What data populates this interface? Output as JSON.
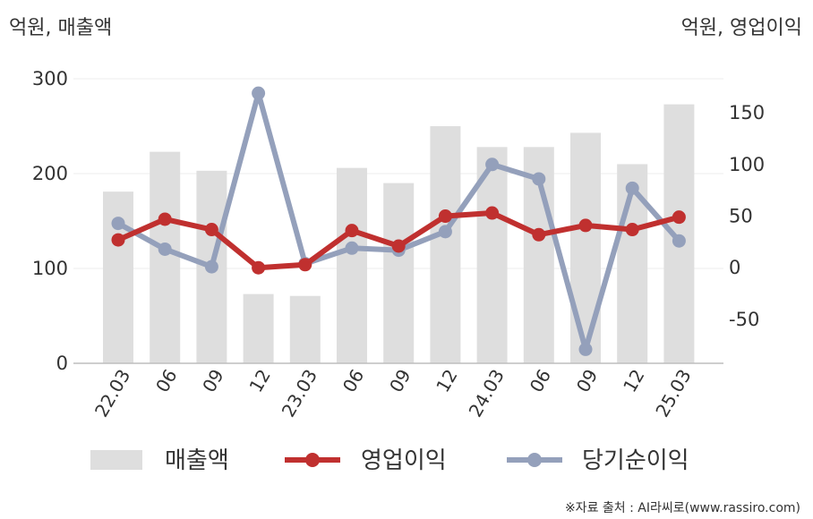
{
  "chart_data": {
    "type": "bar+line",
    "categories": [
      "22.03",
      "06",
      "09",
      "12",
      "23.03",
      "06",
      "09",
      "12",
      "24.03",
      "06",
      "09",
      "12",
      "25.03"
    ],
    "left_axis": {
      "unit_label": "억원, 매출액",
      "ticks": [
        0,
        100,
        200,
        300
      ],
      "range": [
        0,
        300
      ]
    },
    "right_axis": {
      "unit_label": "억원, 영업이익",
      "ticks": [
        -50,
        0,
        50,
        100,
        150
      ],
      "range": [
        -92.5,
        183
      ]
    },
    "series": [
      {
        "name": "매출액",
        "kind": "bar",
        "axis": "left",
        "color": "#dedede",
        "values": [
          181,
          223,
          203,
          73,
          71,
          206,
          190,
          250,
          228,
          228,
          243,
          210,
          273
        ]
      },
      {
        "name": "영업이익",
        "kind": "line",
        "axis": "right",
        "color": "#c0302f",
        "values": [
          27,
          47,
          37,
          0,
          3,
          36,
          21,
          50,
          53,
          32,
          41,
          37,
          49
        ]
      },
      {
        "name": "당기순이익",
        "kind": "line",
        "axis": "right",
        "color": "#94a0bb",
        "values": [
          43,
          18,
          1,
          169,
          4,
          19,
          17,
          35,
          100,
          86,
          -79,
          77,
          26
        ]
      }
    ],
    "grid": true,
    "legend_position": "bottom"
  },
  "source_text": "※자료 출처 : AI라씨로(www.rassiro.com)"
}
